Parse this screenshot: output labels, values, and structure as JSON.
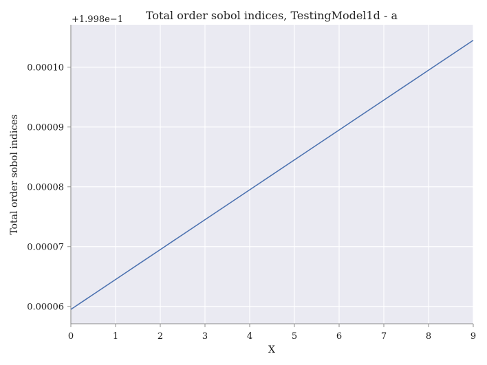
{
  "chart_data": {
    "type": "line",
    "title": "Total order sobol indices, TestingModel1d - a",
    "xlabel": "X",
    "ylabel": "Total order sobol indices",
    "y_offset_label": "+1.998e−1",
    "x": [
      0,
      1,
      2,
      3,
      4,
      5,
      6,
      7,
      8,
      9
    ],
    "series": [
      {
        "values": [
          5.95e-05,
          6.45e-05,
          6.95e-05,
          7.45e-05,
          7.95e-05,
          8.45e-05,
          8.95e-05,
          9.45e-05,
          9.95e-05,
          0.0001045
        ]
      }
    ],
    "xlim": [
      0,
      9
    ],
    "ylim": [
      5.71e-05,
      0.0001071
    ],
    "x_ticks": [
      0,
      1,
      2,
      3,
      4,
      5,
      6,
      7,
      8,
      9
    ],
    "x_tick_labels": [
      "0",
      "1",
      "2",
      "3",
      "4",
      "5",
      "6",
      "7",
      "8",
      "9"
    ],
    "y_ticks": [
      6e-05,
      7e-05,
      8e-05,
      9e-05,
      0.0001
    ],
    "y_tick_labels": [
      "0.00006",
      "0.00007",
      "0.00008",
      "0.00009",
      "0.00010"
    ],
    "grid": true,
    "colors": {
      "background": "#eaeaf2",
      "grid": "#ffffff",
      "line": "#4c72b0",
      "spine": "#8c8c8c"
    }
  }
}
